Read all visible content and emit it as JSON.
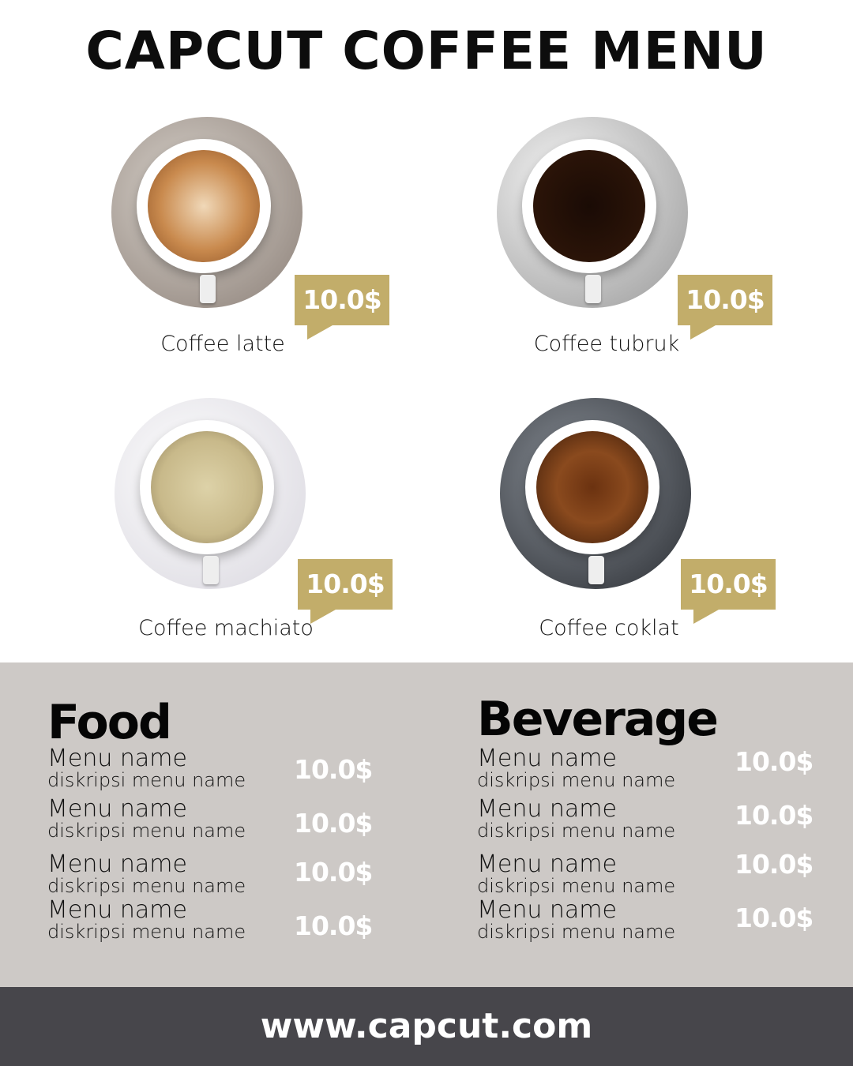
{
  "title": "CAPCUT COFFEE MENU",
  "featured": [
    {
      "name": "Coffee latte",
      "price": "10.0$"
    },
    {
      "name": "Coffee tubruk",
      "price": "10.0$"
    },
    {
      "name": "Coffee machiato",
      "price": "10.0$"
    },
    {
      "name": "Coffee coklat",
      "price": "10.0$"
    }
  ],
  "food": {
    "heading": "Food",
    "items": [
      {
        "name": "Menu name",
        "desc": "diskripsi menu name",
        "price": "10.0$"
      },
      {
        "name": "Menu name",
        "desc": "diskripsi menu name",
        "price": "10.0$"
      },
      {
        "name": "Menu name",
        "desc": "diskripsi menu name",
        "price": "10.0$"
      },
      {
        "name": "Menu name",
        "desc": "diskripsi menu name",
        "price": "10.0$"
      }
    ]
  },
  "beverage": {
    "heading": "Beverage",
    "items": [
      {
        "name": "Menu name",
        "desc": "diskripsi menu name",
        "price": "10.0$"
      },
      {
        "name": "Menu name",
        "desc": "diskripsi menu name",
        "price": "10.0$"
      },
      {
        "name": "Menu name",
        "desc": "diskripsi menu name",
        "price": "10.0$"
      },
      {
        "name": "Menu name",
        "desc": "diskripsi menu name",
        "price": "10.0$"
      }
    ]
  },
  "footer": "www.capcut.com",
  "colors": {
    "accent": "#c2ad6a",
    "panel": "#cdc9c6",
    "footer": "#47464b"
  }
}
